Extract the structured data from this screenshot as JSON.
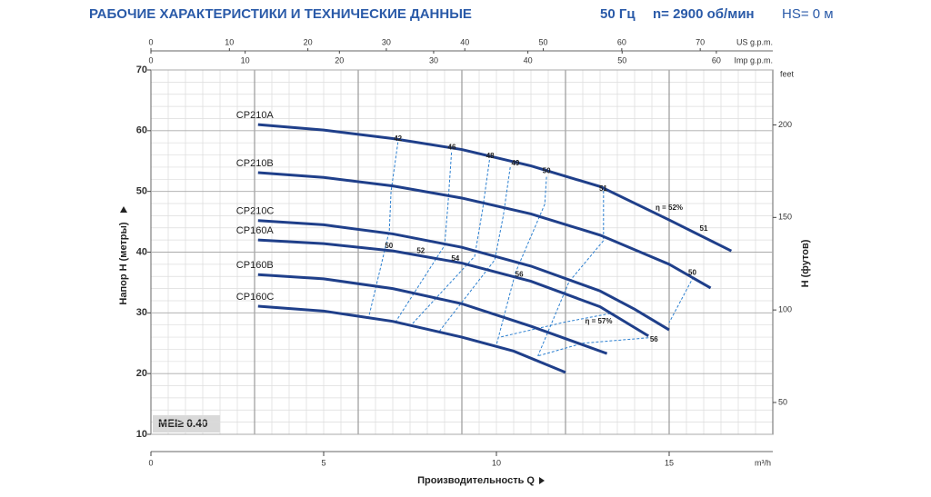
{
  "chart_data": {
    "type": "line",
    "title": "РАБОЧИЕ ХАРАКТЕРИСТИКИ И ТЕХНИЧЕСКИЕ ДАННЫЕ",
    "frequency": "50 Гц",
    "speed": "n= 2900 об/мин",
    "suction": "HS= 0 м",
    "xlabel": "Производительность Q",
    "xunit": "m³/h",
    "ylabel": "Напор H (метры)",
    "y2label": "H (футов)",
    "y2unit": "feet",
    "x2label": "US g.p.m.",
    "x3label": "Imp g.p.m.",
    "mei": "MEI≥ 0.40",
    "xlim": [
      0,
      18
    ],
    "xticks": [
      0,
      5,
      10,
      15
    ],
    "x_major_grid": [
      3,
      6,
      9,
      12,
      15
    ],
    "x_minor_step": 0.5,
    "ylim": [
      10,
      70
    ],
    "yticks": [
      10,
      20,
      30,
      40,
      50,
      60,
      70
    ],
    "y_minor_step": 2,
    "y2lim": [
      32.8,
      229.7
    ],
    "y2ticks": [
      50,
      100,
      150,
      200
    ],
    "x2lim": [
      0,
      79.25
    ],
    "x2ticks": [
      0,
      10,
      20,
      30,
      40,
      50,
      60,
      70
    ],
    "x3lim": [
      0,
      65.99
    ],
    "x3ticks": [
      0,
      10,
      20,
      30,
      40,
      50,
      60
    ],
    "grid": true,
    "curve_color": "#1f3f8a",
    "efficiency_color": "#2b7fd0",
    "series": [
      {
        "name": "CP210A",
        "x": [
          3.1,
          5,
          7,
          9,
          11,
          13,
          15,
          16.8
        ],
        "y": [
          61.0,
          60.1,
          58.7,
          56.9,
          54.2,
          50.8,
          45.3,
          40.2
        ]
      },
      {
        "name": "CP210B",
        "x": [
          3.1,
          5,
          7,
          9,
          11,
          13,
          15,
          16.2
        ],
        "y": [
          53.1,
          52.3,
          50.9,
          48.9,
          46.3,
          42.8,
          38.0,
          34.1
        ]
      },
      {
        "name": "CP210C",
        "x": [
          3.1,
          5,
          7,
          9,
          11,
          13,
          14,
          15
        ],
        "y": [
          45.2,
          44.5,
          43.0,
          40.8,
          37.7,
          33.6,
          30.6,
          27.2
        ]
      },
      {
        "name": "CP160A",
        "x": [
          3.1,
          5,
          7,
          9,
          11,
          13,
          14.4
        ],
        "y": [
          42.0,
          41.4,
          40.2,
          38.2,
          35.2,
          31.0,
          26.2
        ]
      },
      {
        "name": "CP160B",
        "x": [
          3.1,
          5,
          7,
          9,
          11,
          13.2
        ],
        "y": [
          36.3,
          35.6,
          34.0,
          31.5,
          27.8,
          23.3
        ]
      },
      {
        "name": "CP160C",
        "x": [
          3.1,
          5,
          7,
          9,
          10.5,
          12.0
        ],
        "y": [
          31.1,
          30.3,
          28.6,
          26.0,
          23.7,
          20.2
        ]
      }
    ],
    "efficiency_lines": [
      {
        "x": [
          7.15,
          6.95,
          6.9,
          6.3
        ],
        "y": [
          58.1,
          50,
          43.5,
          29.2
        ]
      },
      {
        "x": [
          8.7,
          8.6,
          8.5,
          7.07
        ],
        "y": [
          56.4,
          48,
          41.1,
          28.4
        ]
      },
      {
        "x": [
          9.8,
          9.6,
          9.37,
          7.55
        ],
        "y": [
          55.2,
          47,
          39.3,
          28.1
        ]
      },
      {
        "x": [
          10.4,
          10.2,
          9.95,
          8.34
        ],
        "y": [
          54.0,
          46,
          38.7,
          26.9
        ]
      },
      {
        "x": [
          11.45,
          11.4,
          10.55,
          10.0
        ],
        "y": [
          52.4,
          47.9,
          36.6,
          24.7
        ]
      },
      {
        "x": [
          13.1,
          13.1,
          12.1,
          11.2
        ],
        "y": [
          50.1,
          41.9,
          35.1,
          22.9
        ]
      },
      {
        "x": [
          15.7,
          15.0
        ],
        "y": [
          35.9,
          28.4
        ]
      },
      {
        "x": [
          13.3,
          12.0,
          10.1
        ],
        "y": [
          29.9,
          28.5,
          26.0
        ]
      },
      {
        "x": [
          14.4,
          12.5,
          11.2
        ],
        "y": [
          25.9,
          25.0,
          22.9
        ]
      }
    ],
    "annotations": [
      {
        "text": "42",
        "x": 7.15,
        "y": 58.65
      },
      {
        "text": "46",
        "x": 8.71,
        "y": 57.2
      },
      {
        "text": "48",
        "x": 9.82,
        "y": 55.8
      },
      {
        "text": "49",
        "x": 10.55,
        "y": 54.6
      },
      {
        "text": "50",
        "x": 11.45,
        "y": 53.3
      },
      {
        "text": "51",
        "x": 13.09,
        "y": 50.4
      },
      {
        "text": "η = 52%",
        "x": 15.0,
        "y": 47.3
      },
      {
        "text": "51",
        "x": 16.0,
        "y": 43.8
      },
      {
        "text": "50",
        "x": 15.67,
        "y": 36.6
      },
      {
        "text": "50",
        "x": 6.89,
        "y": 41.0
      },
      {
        "text": "52",
        "x": 7.81,
        "y": 40.2
      },
      {
        "text": "54",
        "x": 8.81,
        "y": 38.9
      },
      {
        "text": "56",
        "x": 10.66,
        "y": 36.3
      },
      {
        "text": "η = 57%",
        "x": 12.96,
        "y": 28.6
      },
      {
        "text": "56",
        "x": 14.56,
        "y": 25.6
      }
    ]
  }
}
